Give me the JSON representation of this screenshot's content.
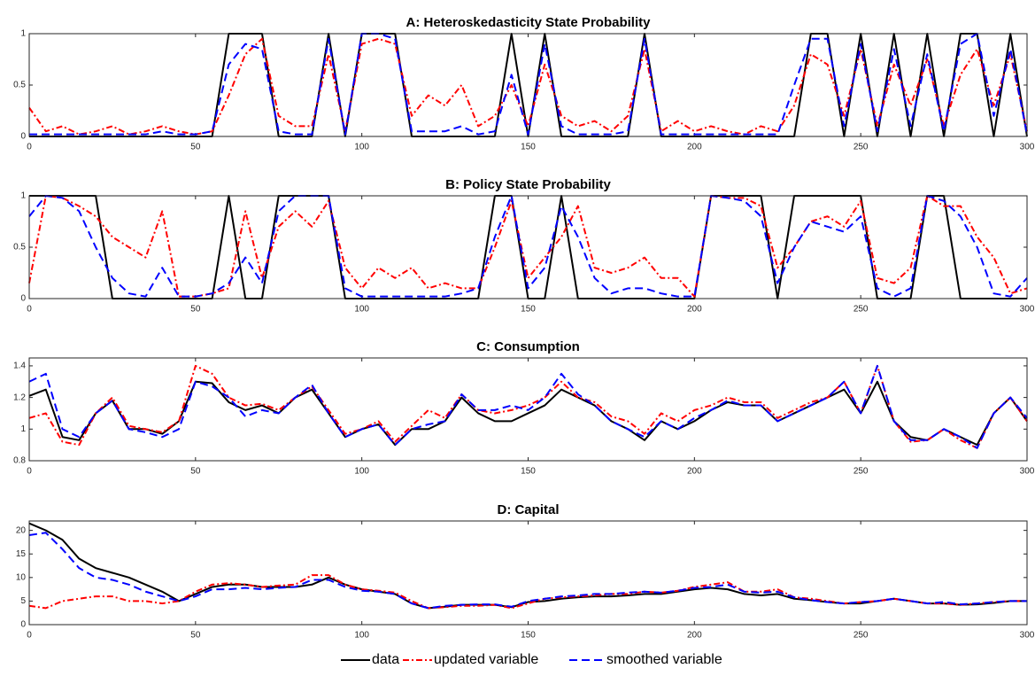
{
  "chart_data": [
    {
      "type": "line",
      "title": "A: Heteroskedasticity State Probability",
      "x": [
        0,
        5,
        10,
        15,
        20,
        25,
        30,
        35,
        40,
        45,
        50,
        55,
        60,
        65,
        70,
        75,
        80,
        85,
        90,
        95,
        100,
        105,
        110,
        115,
        120,
        125,
        130,
        135,
        140,
        145,
        150,
        155,
        160,
        165,
        170,
        175,
        180,
        185,
        190,
        195,
        200,
        205,
        210,
        215,
        220,
        225,
        230,
        235,
        240,
        245,
        250,
        255,
        260,
        265,
        270,
        275,
        280,
        285,
        290,
        295,
        300
      ],
      "xlim": [
        0,
        300
      ],
      "xticks": [
        0,
        50,
        100,
        150,
        200,
        250,
        300
      ],
      "ylim": [
        0,
        1
      ],
      "yticks": [
        0,
        0.5,
        1
      ],
      "series": [
        {
          "name": "data",
          "color": "#000000",
          "style": "solid",
          "values": [
            0,
            0,
            0,
            0,
            0,
            0,
            0,
            0,
            0,
            0,
            0,
            0,
            1,
            1,
            1,
            0,
            0,
            0,
            1,
            0,
            1,
            1,
            1,
            0,
            0,
            0,
            0,
            0,
            0,
            1,
            0,
            1,
            0,
            0,
            0,
            0,
            0,
            1,
            0,
            0,
            0,
            0,
            0,
            0,
            0,
            0,
            0,
            1,
            1,
            0,
            1,
            0,
            1,
            0,
            1,
            0,
            1,
            1,
            0,
            1,
            0
          ]
        },
        {
          "name": "updated variable",
          "color": "#ff0000",
          "style": "dashdot",
          "values": [
            0.28,
            0.05,
            0.1,
            0.02,
            0.05,
            0.1,
            0.02,
            0.05,
            0.1,
            0.05,
            0.02,
            0.05,
            0.4,
            0.8,
            0.95,
            0.2,
            0.1,
            0.1,
            0.8,
            0.05,
            0.9,
            0.95,
            0.9,
            0.2,
            0.4,
            0.3,
            0.5,
            0.1,
            0.2,
            0.5,
            0.1,
            0.7,
            0.2,
            0.1,
            0.15,
            0.05,
            0.2,
            0.85,
            0.05,
            0.15,
            0.05,
            0.1,
            0.05,
            0.02,
            0.1,
            0.05,
            0.3,
            0.8,
            0.7,
            0.2,
            0.85,
            0.1,
            0.7,
            0.3,
            0.75,
            0.1,
            0.6,
            0.85,
            0.3,
            0.8,
            0.05
          ]
        },
        {
          "name": "smoothed variable",
          "color": "#0000ff",
          "style": "dashed",
          "values": [
            0.02,
            0.02,
            0.02,
            0.02,
            0.02,
            0.02,
            0.02,
            0.02,
            0.05,
            0.02,
            0.02,
            0.05,
            0.7,
            0.9,
            0.85,
            0.05,
            0.02,
            0.02,
            0.95,
            0.02,
            1,
            1,
            0.95,
            0.05,
            0.05,
            0.05,
            0.1,
            0.02,
            0.05,
            0.6,
            0.02,
            0.9,
            0.1,
            0.02,
            0.02,
            0.02,
            0.05,
            0.95,
            0.02,
            0.02,
            0.02,
            0.02,
            0.02,
            0.02,
            0.02,
            0.02,
            0.5,
            0.95,
            0.95,
            0.1,
            0.9,
            0.05,
            0.85,
            0.1,
            0.8,
            0.05,
            0.9,
            1,
            0.2,
            0.85,
            0.02
          ]
        }
      ]
    },
    {
      "type": "line",
      "title": "B: Policy State Probability",
      "x": [
        0,
        5,
        10,
        15,
        20,
        25,
        30,
        35,
        40,
        45,
        50,
        55,
        60,
        65,
        70,
        75,
        80,
        85,
        90,
        95,
        100,
        105,
        110,
        115,
        120,
        125,
        130,
        135,
        140,
        145,
        150,
        155,
        160,
        165,
        170,
        175,
        180,
        185,
        190,
        195,
        200,
        205,
        210,
        215,
        220,
        225,
        230,
        235,
        240,
        245,
        250,
        255,
        260,
        265,
        270,
        275,
        280,
        285,
        290,
        295,
        300
      ],
      "xlim": [
        0,
        300
      ],
      "xticks": [
        0,
        50,
        100,
        150,
        200,
        250,
        300
      ],
      "ylim": [
        0,
        1
      ],
      "yticks": [
        0,
        0.5,
        1
      ],
      "series": [
        {
          "color": "#000000",
          "style": "solid",
          "values": [
            1,
            1,
            1,
            1,
            1,
            0,
            0,
            0,
            0,
            0,
            0,
            0,
            1,
            0,
            0,
            1,
            1,
            1,
            1,
            0,
            0,
            0,
            0,
            0,
            0,
            0,
            0,
            0,
            1,
            1,
            0,
            0,
            1,
            0,
            0,
            0,
            0,
            0,
            0,
            0,
            0,
            1,
            1,
            1,
            1,
            0,
            1,
            1,
            1,
            1,
            1,
            0,
            0,
            0,
            1,
            1,
            0,
            0,
            0,
            0,
            0
          ]
        },
        {
          "color": "#ff0000",
          "style": "dashdot",
          "values": [
            0.15,
            1,
            0.98,
            0.9,
            0.8,
            0.6,
            0.5,
            0.4,
            0.85,
            0.02,
            0.02,
            0.05,
            0.1,
            0.85,
            0.2,
            0.7,
            0.85,
            0.7,
            0.95,
            0.3,
            0.1,
            0.3,
            0.2,
            0.3,
            0.1,
            0.15,
            0.1,
            0.1,
            0.5,
            0.95,
            0.2,
            0.4,
            0.6,
            0.9,
            0.3,
            0.25,
            0.3,
            0.4,
            0.2,
            0.2,
            0.02,
            1,
            0.98,
            0.98,
            0.9,
            0.3,
            0.5,
            0.75,
            0.8,
            0.7,
            0.95,
            0.2,
            0.15,
            0.3,
            1,
            0.9,
            0.9,
            0.6,
            0.4,
            0.05,
            0.1
          ]
        },
        {
          "color": "#0000ff",
          "style": "dashed",
          "values": [
            0.8,
            1,
            0.98,
            0.85,
            0.5,
            0.2,
            0.05,
            0.02,
            0.3,
            0.02,
            0.02,
            0.05,
            0.15,
            0.4,
            0.15,
            0.85,
            1,
            1,
            1,
            0.1,
            0.02,
            0.02,
            0.02,
            0.02,
            0.02,
            0.02,
            0.05,
            0.1,
            0.6,
            1,
            0.1,
            0.3,
            0.9,
            0.6,
            0.2,
            0.05,
            0.1,
            0.1,
            0.05,
            0.02,
            0.02,
            1,
            0.98,
            0.95,
            0.8,
            0.15,
            0.5,
            0.75,
            0.7,
            0.65,
            0.8,
            0.1,
            0.02,
            0.1,
            1,
            0.95,
            0.8,
            0.5,
            0.05,
            0.02,
            0.2
          ]
        }
      ]
    },
    {
      "type": "line",
      "title": "C: Consumption",
      "x": [
        0,
        5,
        10,
        15,
        20,
        25,
        30,
        35,
        40,
        45,
        50,
        55,
        60,
        65,
        70,
        75,
        80,
        85,
        90,
        95,
        100,
        105,
        110,
        115,
        120,
        125,
        130,
        135,
        140,
        145,
        150,
        155,
        160,
        165,
        170,
        175,
        180,
        185,
        190,
        195,
        200,
        205,
        210,
        215,
        220,
        225,
        230,
        235,
        240,
        245,
        250,
        255,
        260,
        265,
        270,
        275,
        280,
        285,
        290,
        295,
        300
      ],
      "xlim": [
        0,
        300
      ],
      "xticks": [
        0,
        50,
        100,
        150,
        200,
        250,
        300
      ],
      "ylim": [
        0.8,
        1.45
      ],
      "yticks": [
        0.8,
        1,
        1.2,
        1.4
      ],
      "series": [
        {
          "color": "#000000",
          "style": "solid",
          "values": [
            1.21,
            1.25,
            0.95,
            0.93,
            1.1,
            1.18,
            1.0,
            1.0,
            0.97,
            1.05,
            1.3,
            1.29,
            1.17,
            1.12,
            1.15,
            1.1,
            1.2,
            1.25,
            1.1,
            0.95,
            1.0,
            1.03,
            0.9,
            1.0,
            1.0,
            1.05,
            1.2,
            1.1,
            1.05,
            1.05,
            1.1,
            1.15,
            1.25,
            1.2,
            1.15,
            1.05,
            1.0,
            0.93,
            1.05,
            1.0,
            1.05,
            1.12,
            1.17,
            1.15,
            1.15,
            1.05,
            1.1,
            1.15,
            1.2,
            1.25,
            1.1,
            1.3,
            1.05,
            0.95,
            0.93,
            1.0,
            0.95,
            0.9,
            1.1,
            1.2,
            1.05
          ]
        },
        {
          "color": "#ff0000",
          "style": "dashdot",
          "values": [
            1.07,
            1.1,
            0.92,
            0.9,
            1.1,
            1.2,
            1.02,
            1.0,
            0.98,
            1.05,
            1.4,
            1.35,
            1.2,
            1.15,
            1.16,
            1.12,
            1.2,
            1.27,
            1.12,
            0.97,
            1.0,
            1.05,
            0.92,
            1.02,
            1.12,
            1.07,
            1.22,
            1.12,
            1.1,
            1.12,
            1.15,
            1.2,
            1.3,
            1.2,
            1.17,
            1.08,
            1.05,
            0.97,
            1.1,
            1.05,
            1.12,
            1.15,
            1.2,
            1.17,
            1.17,
            1.07,
            1.12,
            1.17,
            1.2,
            1.3,
            1.1,
            1.4,
            1.05,
            0.92,
            0.93,
            1.0,
            0.93,
            0.88,
            1.1,
            1.2,
            1.05
          ]
        },
        {
          "color": "#0000ff",
          "style": "dashed",
          "values": [
            1.3,
            1.35,
            1.0,
            0.95,
            1.1,
            1.18,
            1.0,
            0.98,
            0.95,
            1.0,
            1.3,
            1.27,
            1.2,
            1.08,
            1.12,
            1.1,
            1.2,
            1.28,
            1.1,
            0.95,
            1.0,
            1.03,
            0.9,
            1.0,
            1.03,
            1.05,
            1.22,
            1.12,
            1.12,
            1.15,
            1.12,
            1.2,
            1.35,
            1.22,
            1.15,
            1.05,
            1.0,
            0.95,
            1.05,
            1.0,
            1.07,
            1.12,
            1.18,
            1.15,
            1.15,
            1.05,
            1.1,
            1.15,
            1.2,
            1.3,
            1.1,
            1.4,
            1.05,
            0.93,
            0.93,
            1.0,
            0.95,
            0.88,
            1.1,
            1.2,
            1.07
          ]
        }
      ]
    },
    {
      "type": "line",
      "title": "D: Capital",
      "x": [
        0,
        5,
        10,
        15,
        20,
        25,
        30,
        35,
        40,
        45,
        50,
        55,
        60,
        65,
        70,
        75,
        80,
        85,
        90,
        95,
        100,
        105,
        110,
        115,
        120,
        125,
        130,
        135,
        140,
        145,
        150,
        155,
        160,
        165,
        170,
        175,
        180,
        185,
        190,
        195,
        200,
        205,
        210,
        215,
        220,
        225,
        230,
        235,
        240,
        245,
        250,
        255,
        260,
        265,
        270,
        275,
        280,
        285,
        290,
        295,
        300
      ],
      "xlim": [
        0,
        300
      ],
      "xticks": [
        0,
        50,
        100,
        150,
        200,
        250,
        300
      ],
      "ylim": [
        0,
        22
      ],
      "yticks": [
        0,
        5,
        10,
        15,
        20
      ],
      "series": [
        {
          "color": "#000000",
          "style": "solid",
          "values": [
            21.5,
            20,
            18,
            14,
            12,
            11,
            10,
            8.5,
            7,
            5,
            6.5,
            8,
            8.5,
            8.5,
            8,
            8,
            8,
            8.5,
            10,
            8.5,
            7.5,
            7,
            6.5,
            4.5,
            3.5,
            3.8,
            4.2,
            4.2,
            4.2,
            3.7,
            4.8,
            5,
            5.5,
            5.8,
            6,
            6,
            6.2,
            6.5,
            6.5,
            7,
            7.5,
            7.8,
            7.5,
            6.5,
            6.2,
            6.5,
            5.5,
            5.2,
            4.8,
            4.5,
            4.5,
            5,
            5.5,
            5,
            4.5,
            4.5,
            4.2,
            4.3,
            4.6,
            5,
            5
          ]
        },
        {
          "color": "#ff0000",
          "style": "dashdot",
          "values": [
            4,
            3.5,
            5,
            5.5,
            6,
            6,
            5,
            5,
            4.5,
            5,
            7,
            8.5,
            8.8,
            8.5,
            8,
            8.3,
            8.5,
            10.5,
            10.5,
            8.5,
            7.5,
            7.2,
            6.8,
            5,
            3.5,
            3.7,
            4,
            4,
            4.2,
            3.5,
            4.5,
            5.5,
            5.8,
            6,
            6.2,
            6.5,
            6.5,
            7,
            6.8,
            7.2,
            8,
            8.5,
            9,
            7,
            7,
            7.5,
            5.8,
            5.5,
            5,
            4.5,
            4.8,
            5,
            5.5,
            5,
            4.5,
            4.5,
            4.2,
            4.5,
            4.8,
            5,
            5
          ]
        },
        {
          "color": "#0000ff",
          "style": "dashed",
          "values": [
            19,
            19.5,
            16,
            12,
            10,
            9.5,
            8.5,
            7,
            6,
            5,
            6,
            7.5,
            7.5,
            7.8,
            7.5,
            7.8,
            8,
            9.5,
            9.5,
            8,
            7.2,
            7,
            6.5,
            4.5,
            3.5,
            4,
            4.2,
            4.3,
            4.3,
            3.8,
            5,
            5.5,
            6,
            6.2,
            6.5,
            6.5,
            6.8,
            7,
            6.8,
            7.2,
            7.8,
            8,
            8.5,
            7,
            6.8,
            7,
            5.8,
            5.2,
            4.8,
            4.5,
            4.8,
            5,
            5.5,
            5,
            4.5,
            4.8,
            4.3,
            4.5,
            4.8,
            5,
            5
          ]
        }
      ]
    }
  ]
}
